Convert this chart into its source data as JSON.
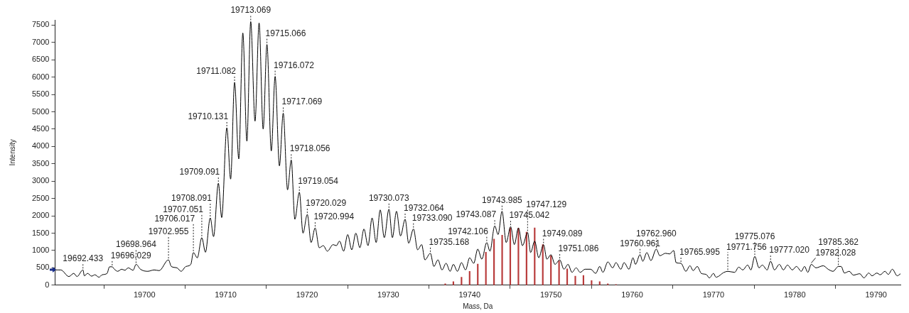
{
  "chart_data": {
    "type": "line",
    "xlabel": "Mass, Da",
    "ylabel": "Intensity",
    "xlim": [
      19689,
      19793
    ],
    "xticks": [
      19700,
      19710,
      19720,
      19730,
      19740,
      19750,
      19760,
      19770,
      19780,
      19790
    ],
    "ylim": [
      0,
      7650
    ],
    "yticks": [
      0,
      500,
      1000,
      1500,
      2000,
      2500,
      3000,
      3500,
      4000,
      4500,
      5000,
      5500,
      6000,
      6500,
      7000,
      7500
    ],
    "grid": false,
    "legend": false,
    "marker": "none",
    "series": [
      {
        "color": "#000000",
        "x": [
          19689,
          19689.7,
          19690.7,
          19691.3,
          19691.7,
          19692.433,
          19692.6,
          19693,
          19693.5,
          19693.9,
          19694.4,
          19694.8,
          19695.4,
          19695.7,
          19696.029,
          19696.3,
          19696.7,
          19697.2,
          19697.6,
          19698,
          19698.6,
          19698.964,
          19699.5,
          19700.4,
          19701.2,
          19701.8,
          19702.955,
          19703.3,
          19704,
          19704.5,
          19705.1,
          19705.7,
          19706.017,
          19706.5,
          19707.051,
          19707.5,
          19708.091,
          19708.5,
          19709.091,
          19709.5,
          19710.131,
          19710.6,
          19711.082,
          19711.6,
          19712.1,
          19712.6,
          19713.069,
          19713.6,
          19714.1,
          19714.6,
          19715.066,
          19715.6,
          19716.072,
          19716.6,
          19717.069,
          19717.6,
          19718.056,
          19718.5,
          19719.054,
          19719.5,
          19720.029,
          19720.5,
          19720.994,
          19721.5,
          19722,
          19722.5,
          19723.2,
          19723.6,
          19724,
          19724.5,
          19725,
          19725.5,
          19726,
          19726.5,
          19727,
          19727.5,
          19728,
          19728.5,
          19729,
          19729.5,
          19730.073,
          19730.5,
          19731,
          19731.5,
          19732.064,
          19732.5,
          19733.09,
          19733.6,
          19734.1,
          19734.5,
          19735.168,
          19735.6,
          19736.1,
          19736.6,
          19737.1,
          19737.6,
          19738,
          19738.5,
          19739,
          19739.5,
          19740,
          19740.5,
          19741,
          19741.5,
          19742.106,
          19742.5,
          19743.087,
          19743.5,
          19743.985,
          19744.5,
          19745.042,
          19745.5,
          19746,
          19746.5,
          19747.129,
          19747.5,
          19748,
          19748.5,
          19749.089,
          19749.5,
          19750,
          19750.5,
          19751.086,
          19751.6,
          19752.1,
          19752.6,
          19753.1,
          19753.6,
          19754.2,
          19754.9,
          19755.5,
          19756,
          19756.4,
          19757,
          19757.6,
          19758,
          19758.6,
          19759,
          19759.6,
          19760.1,
          19760.4,
          19760.961,
          19761.3,
          19761.8,
          19762.3,
          19762.96,
          19763.4,
          19764.1,
          19764.6,
          19765.1,
          19765.4,
          19765.995,
          19766.6,
          19767.1,
          19767.5,
          19768,
          19768.5,
          19769.1,
          19769.5,
          19770,
          19770.3,
          19771.3,
          19771.756,
          19772.6,
          19773.1,
          19773.6,
          19774.2,
          19774.6,
          19775.076,
          19775.6,
          19776,
          19776.6,
          19777.02,
          19777.5,
          19778.1,
          19778.6,
          19779.1,
          19779.7,
          19780.2,
          19780.8,
          19781.2,
          19781.6,
          19782.028,
          19782.6,
          19783.5,
          19784.1,
          19784.7,
          19785.362,
          19785.7,
          19786.1,
          19786.7,
          19787.2,
          19788,
          19788.5,
          19789.1,
          19789.5,
          19790.1,
          19790.5,
          19791.1,
          19791.5,
          19792,
          19792.6,
          19793
        ],
        "values": [
          440,
          440,
          250,
          340,
          250,
          440,
          270,
          340,
          260,
          300,
          230,
          300,
          340,
          530,
          530,
          460,
          400,
          460,
          430,
          500,
          430,
          600,
          460,
          400,
          440,
          420,
          730,
          540,
          500,
          400,
          540,
          600,
          940,
          790,
          1370,
          950,
          1940,
          1400,
          2940,
          1950,
          4540,
          3060,
          5850,
          3640,
          7270,
          4150,
          7600,
          4730,
          7560,
          4500,
          6940,
          3870,
          6020,
          3440,
          4960,
          2750,
          3610,
          1900,
          2680,
          1500,
          2040,
          1230,
          1650,
          1080,
          1140,
          980,
          1170,
          1140,
          1270,
          980,
          1460,
          1020,
          1500,
          1080,
          1620,
          1140,
          1940,
          1230,
          2170,
          1370,
          2190,
          1370,
          2130,
          1420,
          1900,
          1210,
          1620,
          1020,
          1170,
          730,
          920,
          540,
          730,
          440,
          630,
          400,
          600,
          400,
          650,
          440,
          790,
          630,
          1040,
          750,
          1230,
          980,
          1710,
          1460,
          2130,
          1230,
          1690,
          1170,
          1650,
          1140,
          1520,
          940,
          1270,
          790,
          1170,
          750,
          880,
          600,
          730,
          460,
          600,
          370,
          500,
          370,
          460,
          460,
          340,
          540,
          370,
          670,
          500,
          650,
          460,
          650,
          460,
          790,
          600,
          880,
          690,
          940,
          710,
          1040,
          850,
          920,
          900,
          1000,
          650,
          630,
          400,
          560,
          420,
          540,
          340,
          310,
          210,
          340,
          230,
          370,
          400,
          370,
          520,
          440,
          580,
          440,
          830,
          500,
          580,
          440,
          690,
          440,
          600,
          440,
          580,
          440,
          540,
          400,
          540,
          370,
          600,
          500,
          560,
          460,
          400,
          540,
          540,
          350,
          400,
          290,
          330,
          210,
          350,
          270,
          350,
          300,
          400,
          310,
          460,
          270,
          330
        ]
      },
      {
        "type": "bar",
        "color": "#b83a3a",
        "x": [
          19737,
          19738,
          19739,
          19740,
          19741,
          19742,
          19743,
          19744,
          19745,
          19746,
          19747,
          19748,
          19749,
          19750,
          19751,
          19752,
          19753,
          19754,
          19755,
          19756,
          19757,
          19758
        ],
        "values": [
          40,
          100,
          230,
          400,
          610,
          950,
          1330,
          1440,
          1650,
          1640,
          1530,
          1650,
          1170,
          850,
          700,
          470,
          260,
          280,
          130,
          100,
          40,
          20
        ]
      }
    ],
    "annotations": [
      {
        "text": "19692.433",
        "x": 19692.433,
        "y": 440
      },
      {
        "text": "19696.029",
        "x": 19696.029,
        "y": 530
      },
      {
        "text": "19698.964",
        "x": 19698.964,
        "y": 600
      },
      {
        "text": "19702.955",
        "x": 19702.955,
        "y": 730
      },
      {
        "text": "19706.017",
        "x": 19706.017,
        "y": 940
      },
      {
        "text": "19707.051",
        "x": 19707.051,
        "y": 1370
      },
      {
        "text": "19708.091",
        "x": 19708.091,
        "y": 1940
      },
      {
        "text": "19709.091",
        "x": 19709.091,
        "y": 2940
      },
      {
        "text": "19710.131",
        "x": 19710.131,
        "y": 4540
      },
      {
        "text": "19711.082",
        "x": 19711.082,
        "y": 5850
      },
      {
        "text": "19713.069",
        "x": 19713.069,
        "y": 7600
      },
      {
        "text": "19715.066",
        "x": 19715.066,
        "y": 6940
      },
      {
        "text": "19716.072",
        "x": 19716.072,
        "y": 6020
      },
      {
        "text": "19717.069",
        "x": 19717.069,
        "y": 4960
      },
      {
        "text": "19718.056",
        "x": 19718.056,
        "y": 3610
      },
      {
        "text": "19719.054",
        "x": 19719.054,
        "y": 2680
      },
      {
        "text": "19720.029",
        "x": 19720.029,
        "y": 2040
      },
      {
        "text": "19720.994",
        "x": 19720.994,
        "y": 1650
      },
      {
        "text": "19730.073",
        "x": 19730.073,
        "y": 2190
      },
      {
        "text": "19732.064",
        "x": 19732.064,
        "y": 1900
      },
      {
        "text": "19733.090",
        "x": 19733.09,
        "y": 1620
      },
      {
        "text": "19735.168",
        "x": 19735.168,
        "y": 920
      },
      {
        "text": "19742.106",
        "x": 19742.106,
        "y": 1230
      },
      {
        "text": "19743.087",
        "x": 19743.087,
        "y": 1710
      },
      {
        "text": "19743.985",
        "x": 19743.985,
        "y": 2130
      },
      {
        "text": "19745.042",
        "x": 19745.042,
        "y": 1690
      },
      {
        "text": "19747.129",
        "x": 19747.129,
        "y": 1520
      },
      {
        "text": "19749.089",
        "x": 19749.089,
        "y": 1170
      },
      {
        "text": "19751.086",
        "x": 19751.086,
        "y": 730
      },
      {
        "text": "19760.961",
        "x": 19760.961,
        "y": 880
      },
      {
        "text": "19762.960",
        "x": 19762.96,
        "y": 1040
      },
      {
        "text": "19765.995",
        "x": 19765.995,
        "y": 630
      },
      {
        "text": "19771.756",
        "x": 19771.756,
        "y": 400
      },
      {
        "text": "19775.076",
        "x": 19775.076,
        "y": 830
      },
      {
        "text": "19777.020",
        "x": 19777.02,
        "y": 690
      },
      {
        "text": "19782.028",
        "x": 19782.028,
        "y": 600
      },
      {
        "text": "19785.362",
        "x": 19785.362,
        "y": 540
      }
    ]
  }
}
